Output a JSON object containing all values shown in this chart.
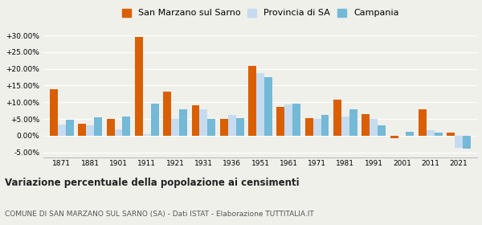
{
  "years": [
    1871,
    1881,
    1901,
    1911,
    1921,
    1931,
    1936,
    1951,
    1961,
    1971,
    1981,
    1991,
    2001,
    2011,
    2021
  ],
  "san_marzano": [
    13.8,
    3.5,
    5.0,
    29.5,
    13.2,
    9.0,
    5.0,
    20.8,
    8.6,
    5.3,
    10.7,
    6.5,
    -0.8,
    7.9,
    1.0
  ],
  "provincia_sa": [
    3.3,
    3.2,
    1.8,
    0.5,
    5.1,
    7.8,
    6.2,
    18.6,
    9.3,
    5.0,
    5.8,
    5.1,
    0.0,
    1.6,
    -3.5
  ],
  "campania": [
    4.9,
    5.5,
    5.7,
    9.5,
    7.8,
    5.0,
    5.3,
    17.5,
    9.7,
    6.2,
    7.9,
    3.1,
    1.1,
    1.0,
    -3.8
  ],
  "color_san_marzano": "#d95f02",
  "color_provincia": "#c6dbef",
  "color_campania": "#74b9d6",
  "ylim": [
    -6.5,
    32.5
  ],
  "yticks": [
    -5.0,
    0.0,
    5.0,
    10.0,
    15.0,
    20.0,
    25.0,
    30.0
  ],
  "title": "Variazione percentuale della popolazione ai censimenti",
  "subtitle": "COMUNE DI SAN MARZANO SUL SARNO (SA) - Dati ISTAT - Elaborazione TUTTITALIA.IT",
  "legend_labels": [
    "San Marzano sul Sarno",
    "Provincia di SA",
    "Campania"
  ],
  "background_color": "#f0f0eb",
  "bar_width": 0.28
}
